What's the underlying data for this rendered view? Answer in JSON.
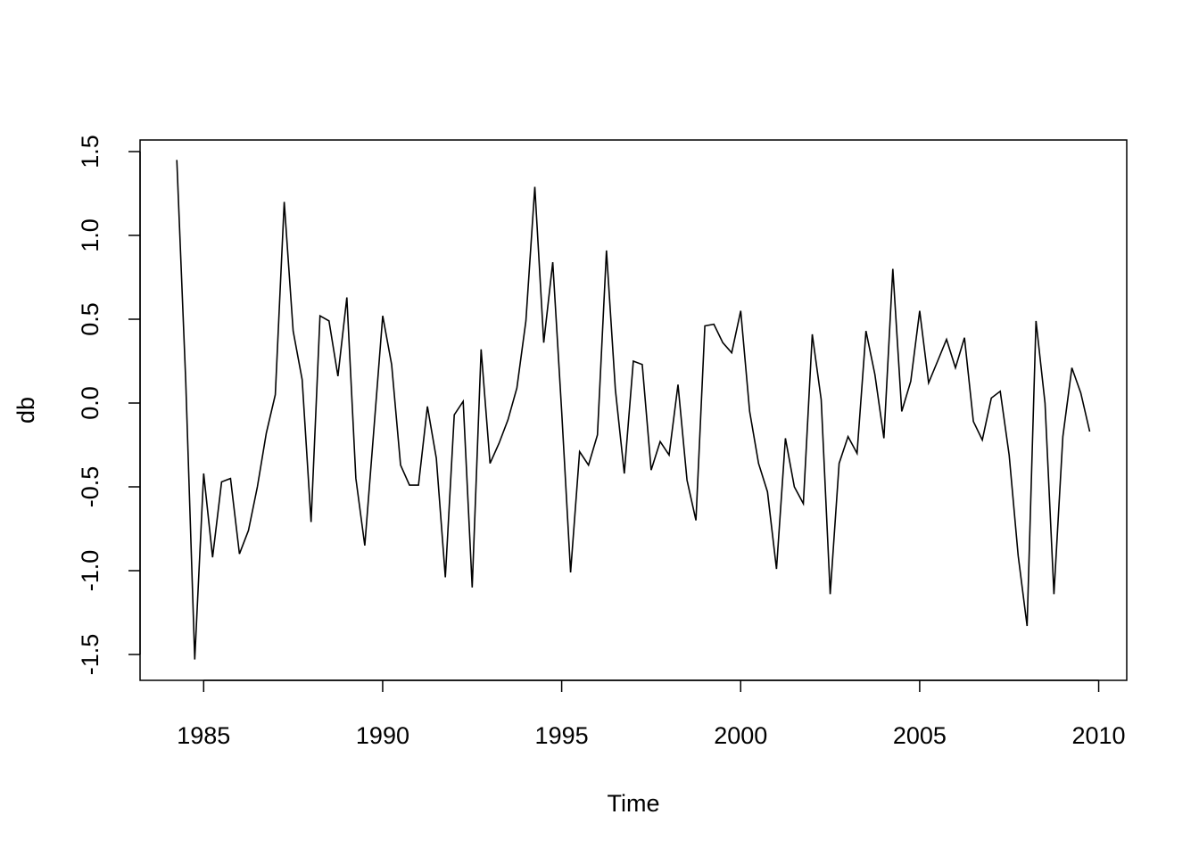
{
  "chart_data": {
    "type": "line",
    "title": "",
    "xlabel": "Time",
    "ylabel": "db",
    "x_start": 1984.25,
    "frequency": 4,
    "xlim": [
      1983.6,
      2010.4
    ],
    "ylim": [
      -1.57,
      1.57
    ],
    "x_ticks": [
      1985,
      1990,
      1995,
      2000,
      2005,
      2010
    ],
    "x_tick_labels": [
      "1985",
      "1990",
      "1995",
      "2000",
      "2005",
      "2010"
    ],
    "y_ticks": [
      -1.5,
      -1.0,
      -0.5,
      0.0,
      0.5,
      1.0,
      1.5
    ],
    "y_tick_labels": [
      "-1.5",
      "-1.0",
      "-0.5",
      "0.0",
      "0.5",
      "1.0",
      "1.5"
    ],
    "grid": false,
    "line_color": "#000000",
    "values": [
      1.45,
      0.13,
      -1.53,
      -0.42,
      -0.92,
      -0.47,
      -0.45,
      -0.9,
      -0.76,
      -0.5,
      -0.18,
      0.05,
      1.2,
      0.43,
      0.14,
      -0.71,
      0.52,
      0.49,
      0.16,
      0.63,
      -0.45,
      -0.85,
      -0.17,
      0.52,
      0.23,
      -0.37,
      -0.49,
      -0.49,
      -0.02,
      -0.33,
      -1.04,
      -0.07,
      0.01,
      -1.1,
      0.32,
      -0.36,
      -0.24,
      -0.1,
      0.09,
      0.49,
      1.29,
      0.36,
      0.84,
      -0.05,
      -1.01,
      -0.29,
      -0.37,
      -0.19,
      0.91,
      0.08,
      -0.42,
      0.25,
      0.23,
      -0.4,
      -0.23,
      -0.31,
      0.11,
      -0.46,
      -0.7,
      0.46,
      0.47,
      0.36,
      0.3,
      0.55,
      -0.05,
      -0.36,
      -0.53,
      -0.99,
      -0.21,
      -0.5,
      -0.6,
      0.41,
      0.02,
      -1.14,
      -0.36,
      -0.2,
      -0.3,
      0.43,
      0.17,
      -0.21,
      0.8,
      -0.05,
      0.13,
      0.55,
      0.12,
      0.25,
      0.38,
      0.21,
      0.39,
      -0.11,
      -0.22,
      0.03,
      0.07,
      -0.31,
      -0.91,
      -1.33,
      0.49,
      0.0,
      -1.14,
      -0.2,
      0.21,
      0.06,
      -0.17
    ]
  }
}
